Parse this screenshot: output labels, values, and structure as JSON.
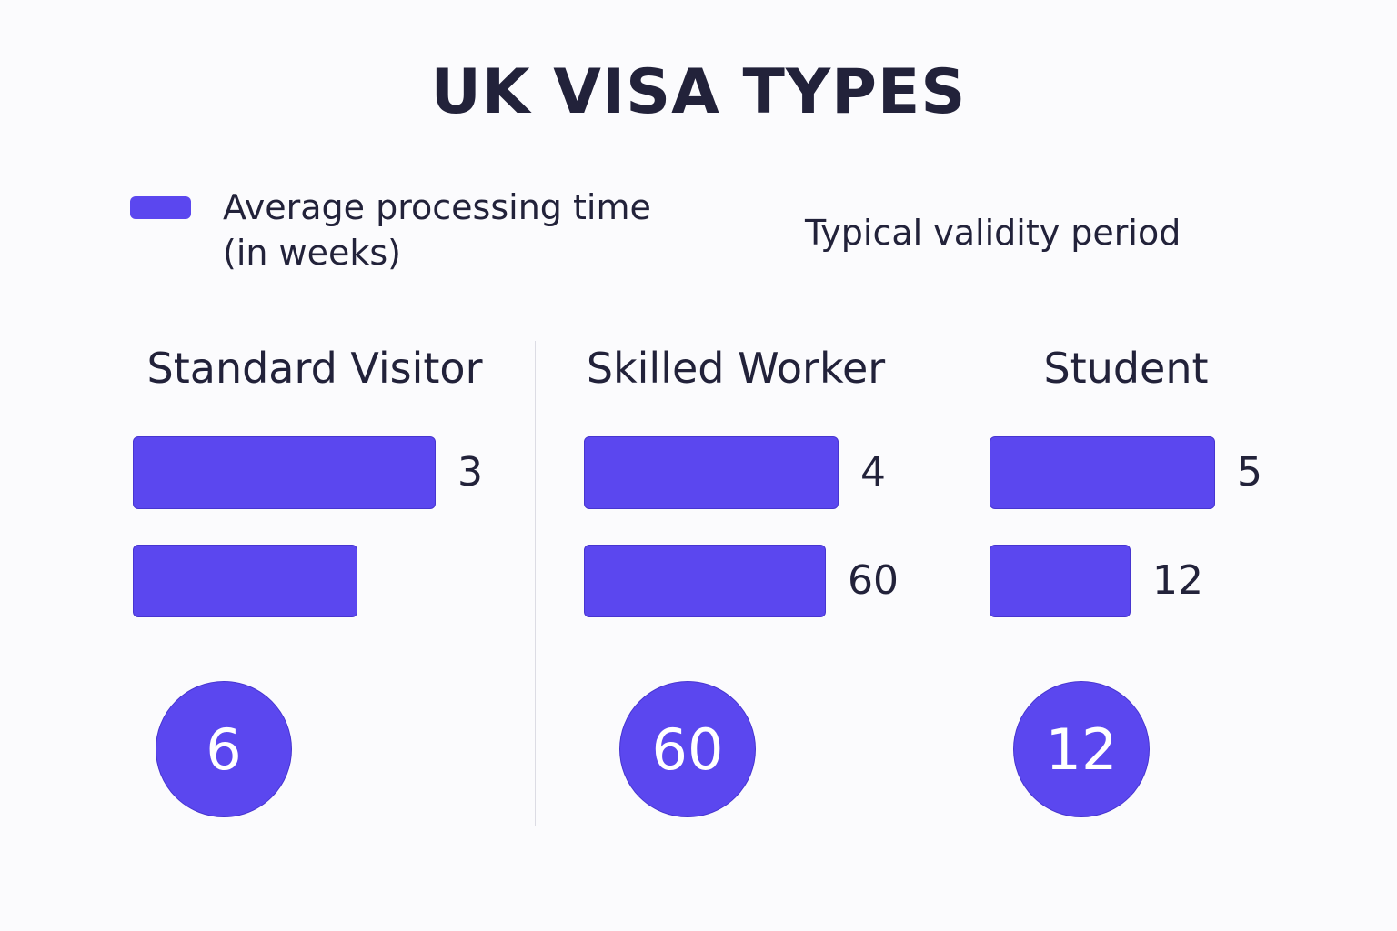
{
  "title": "UK VISA TYPES",
  "legend": {
    "processing": "Average processing time (in weeks)",
    "validity": "Typical validity period"
  },
  "groups": [
    {
      "name": "Standard Visitor",
      "bars": [
        3
      ],
      "circle": 6
    },
    {
      "name": "Skilled Worker",
      "bars": [
        4,
        60
      ],
      "circle": 60
    },
    {
      "name": "Student",
      "bars": [
        5,
        12
      ],
      "circle": 12
    }
  ]
}
